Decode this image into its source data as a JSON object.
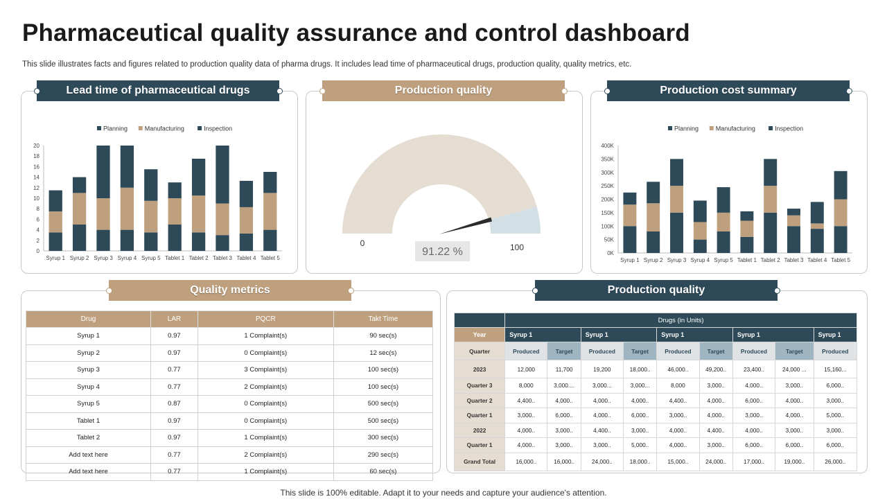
{
  "title": "Pharmaceutical quality assurance and control dashboard",
  "subtitle": "This slide illustrates facts and figures related to production quality data of pharma drugs. It includes lead time of pharmaceutical drugs, production quality, quality metrics, etc.",
  "footer": "This slide is 100% editable. Adapt it to your needs and capture your audience's attention.",
  "panels": {
    "lead_time": "Lead time of pharmaceutical drugs",
    "production_quality_gauge": "Production quality",
    "cost_summary": "Production cost summary",
    "quality_metrics": "Quality metrics",
    "production_quality_table": "Production quality"
  },
  "colors": {
    "dark": "#2e4a59",
    "tan": "#bfa07e",
    "gauge_bg": "#e6ddd2",
    "gauge_accent": "#d2dfe5"
  },
  "chart_data": [
    {
      "type": "bar",
      "stacked": true,
      "categories": [
        "Syrup 1",
        "Syrup 2",
        "Syrup 3",
        "Syrup 4",
        "Syrup 5",
        "Tablet 1",
        "Tablet 2",
        "Tablet 3",
        "Tablet 4",
        "Tablet 5"
      ],
      "series": [
        {
          "name": "Planning",
          "values": [
            3.5,
            5,
            4,
            4,
            3.5,
            5,
            3.5,
            3,
            3.3,
            4
          ]
        },
        {
          "name": "Manufacturing",
          "values": [
            4,
            6,
            6,
            8,
            6,
            5,
            7,
            6,
            5,
            7
          ]
        },
        {
          "name": "Inspection",
          "values": [
            4,
            3,
            10,
            8,
            6,
            3,
            7,
            11,
            5,
            4
          ]
        }
      ],
      "yticks": [
        "0",
        "2",
        "4",
        "6",
        "8",
        "10",
        "12",
        "14",
        "16",
        "18",
        "20"
      ],
      "ylim": [
        0,
        20
      ],
      "legend": "top"
    },
    {
      "type": "gauge",
      "value": 91.22,
      "value_label": "91.22 %",
      "min_label": "0",
      "max_label": "100"
    },
    {
      "type": "bar",
      "stacked": true,
      "categories": [
        "Syrup 1",
        "Syrup 2",
        "Syrup 3",
        "Syrup 4",
        "Syrup 5",
        "Tablet 1",
        "Tablet 2",
        "Tablet 3",
        "Tablet 4",
        "Tablet 5"
      ],
      "series": [
        {
          "name": "Planning",
          "values": [
            100000,
            80000,
            150000,
            50000,
            80000,
            60000,
            150000,
            100000,
            90000,
            100000
          ]
        },
        {
          "name": "Manufacturing",
          "values": [
            80000,
            105000,
            100000,
            65000,
            70000,
            60000,
            100000,
            40000,
            20000,
            100000
          ]
        },
        {
          "name": "Inspection",
          "values": [
            45000,
            80000,
            100000,
            80000,
            95000,
            35000,
            100000,
            25000,
            80000,
            105000
          ]
        }
      ],
      "yticks": [
        "0K",
        "50K",
        "100K",
        "150K",
        "200K",
        "250K",
        "300K",
        "350K",
        "400K"
      ],
      "ylim": [
        0,
        400000
      ],
      "legend": "top"
    },
    {
      "type": "table",
      "headers": [
        "Drug",
        "LAR",
        "PQCR",
        "Takt Time"
      ],
      "rows": [
        [
          "Syrup 1",
          "0.97",
          "1 Complaint(s)",
          "90 sec(s)"
        ],
        [
          "Syrup 2",
          "0.97",
          "0 Complaint(s)",
          "12 sec(s)"
        ],
        [
          "Syrup 3",
          "0.77",
          "3 Complaint(s)",
          "100 sec(s)"
        ],
        [
          "Syrup 4",
          "0.77",
          "2 Complaint(s)",
          "100 sec(s)"
        ],
        [
          "Syrup 5",
          "0.87",
          "0 Complaint(s)",
          "500 sec(s)"
        ],
        [
          "Tablet 1",
          "0.97",
          "0 Complaint(s)",
          "500 sec(s)"
        ],
        [
          "Tablet 2",
          "0.97",
          "1 Complaint(s)",
          "300 sec(s)"
        ],
        [
          "Add text here",
          "0.77",
          "2 Complaint(s)",
          "290 sec(s)"
        ],
        [
          "Add text here",
          "0.77",
          "1 Complaint(s)",
          "60 sec(s)"
        ]
      ]
    },
    {
      "type": "table",
      "header": "Drugs (in Units)",
      "year_label": "Year",
      "quarter_label": "Quarter",
      "groups": [
        "Syrup 1",
        "Syrup 1",
        "Syrup 1",
        "Syrup 1",
        "Syrup 1"
      ],
      "subheaders": [
        "Produced",
        "Target",
        "Produced",
        "Target",
        "Produced",
        "Target",
        "Produced",
        "Target",
        "Produced"
      ],
      "rows": [
        {
          "label": "2023",
          "values": [
            "12,000",
            "11,700",
            "19,200",
            "18,000..",
            "46,000..",
            "49,200..",
            "23,400..",
            "24,000 ...",
            "15,160..."
          ]
        },
        {
          "label": "Quarter 3",
          "values": [
            "8,000",
            "3,000....",
            "3,000...",
            "3,000...",
            "8,000",
            "3,000..",
            "4,000..",
            "3,000..",
            "6,000.."
          ]
        },
        {
          "label": "Quarter 2",
          "values": [
            "4,400..",
            "4,000..",
            "4,000..",
            "4,000..",
            "4,400..",
            "4,000..",
            "6,000..",
            "4,000..",
            "3,000.."
          ]
        },
        {
          "label": "Quarter 1",
          "values": [
            "3,000..",
            "6,000..",
            "4,000..",
            "6,000..",
            "3,000..",
            "4,000..",
            "3,000..",
            "4,000..",
            "5,000.."
          ]
        },
        {
          "label": "2022",
          "values": [
            "4,000..",
            "3,000..",
            "4,400..",
            "3,000..",
            "4,000..",
            "4,400..",
            "4,000..",
            "3,000..",
            "3,000.."
          ]
        },
        {
          "label": "Quarter 1",
          "values": [
            "4,000..",
            "3,000..",
            "3,000..",
            "5,000..",
            "4,000..",
            "3,000..",
            "6,000..",
            "6,000..",
            "6,000.."
          ]
        },
        {
          "label": "Grand Total",
          "values": [
            "16,000..",
            "16,000..",
            "24,000..",
            "18,000..",
            "15,000..",
            "24,000..",
            "17,000..",
            "19,000..",
            "26,000.."
          ]
        }
      ]
    }
  ]
}
